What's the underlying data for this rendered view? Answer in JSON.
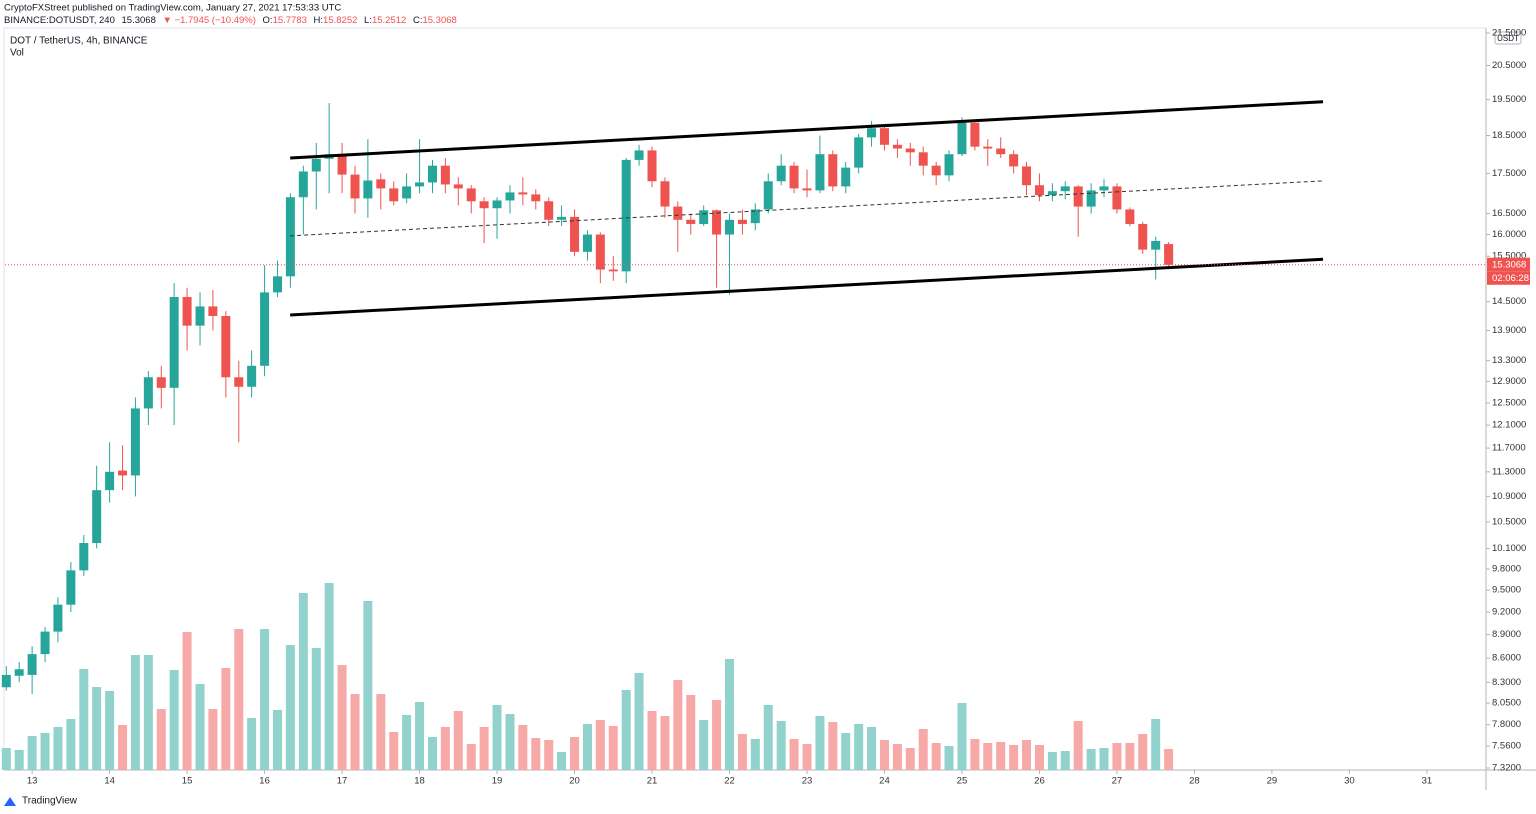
{
  "header": {
    "publisher": "CryptoFXStreet published on TradingView.com, January 27, 2021 17:53:33 UTC",
    "symbol": "BINANCE:DOTUSDT, 240",
    "price": "15.3068",
    "change": "▼ −1.7945 (−10.49%)",
    "ohlc": [
      {
        "label": "O:",
        "value": "15.7783"
      },
      {
        "label": "H:",
        "value": "15.8252"
      },
      {
        "label": "L:",
        "value": "15.2512"
      },
      {
        "label": "C:",
        "value": "15.3068"
      }
    ]
  },
  "brand": "TradingView",
  "chart_data": {
    "type": "candlestick",
    "title": "DOT / TetherUS, 4h, BINANCE",
    "volume_label": "Vol",
    "currency": "USDT",
    "log_scale": true,
    "up_color": "#26a69a",
    "down_color": "#ef5350",
    "up_volume_color": "#92d2cc",
    "down_volume_color": "#f7a9a7",
    "xlim": [
      12.65,
      31.75
    ],
    "xticks": [
      13,
      14,
      15,
      16,
      17,
      18,
      19,
      20,
      21,
      22,
      23,
      24,
      25,
      26,
      27,
      28,
      29,
      30,
      31
    ],
    "ylim": [
      7.32,
      21.5
    ],
    "yticks": [
      {
        "value": 21.5,
        "label": "21.5000"
      },
      {
        "value": 20.5,
        "label": "20.5000"
      },
      {
        "value": 19.5,
        "label": "19.5000"
      },
      {
        "value": 18.5,
        "label": "18.5000"
      },
      {
        "value": 17.5,
        "label": "17.5000"
      },
      {
        "value": 16.5,
        "label": "16.5000"
      },
      {
        "value": 16,
        "label": "16.0000"
      },
      {
        "value": 15.5,
        "label": "15.5000"
      },
      {
        "value": 14.5,
        "label": "14.5000"
      },
      {
        "value": 13.9,
        "label": "13.9000"
      },
      {
        "value": 13.3,
        "label": "13.3000"
      },
      {
        "value": 12.9,
        "label": "12.9000"
      },
      {
        "value": 12.5,
        "label": "12.5000"
      },
      {
        "value": 12.1,
        "label": "12.1000"
      },
      {
        "value": 11.7,
        "label": "11.7000"
      },
      {
        "value": 11.3,
        "label": "11.3000"
      },
      {
        "value": 10.9,
        "label": "10.9000"
      },
      {
        "value": 10.5,
        "label": "10.5000"
      },
      {
        "value": 10.1,
        "label": "10.1000"
      },
      {
        "value": 9.8,
        "label": "9.8000"
      },
      {
        "value": 9.5,
        "label": "9.5000"
      },
      {
        "value": 9.2,
        "label": "9.2000"
      },
      {
        "value": 8.9,
        "label": "8.9000"
      },
      {
        "value": 8.6,
        "label": "8.6000"
      },
      {
        "value": 8.3,
        "label": "8.3000"
      },
      {
        "value": 8.05,
        "label": "8.0500"
      },
      {
        "value": 7.8,
        "label": "7.8000"
      },
      {
        "value": 7.56,
        "label": "7.5600"
      },
      {
        "value": 7.32,
        "label": "7.3200"
      }
    ],
    "x": [
      12.667,
      12.833,
      13,
      13.167,
      13.333,
      13.5,
      13.667,
      13.833,
      14,
      14.167,
      14.333,
      14.5,
      14.667,
      14.833,
      15,
      15.167,
      15.333,
      15.5,
      15.667,
      15.833,
      16,
      16.167,
      16.333,
      16.5,
      16.667,
      16.833,
      17,
      17.167,
      17.333,
      17.5,
      17.667,
      17.833,
      18,
      18.167,
      18.333,
      18.5,
      18.667,
      18.833,
      19,
      19.167,
      19.333,
      19.5,
      19.667,
      19.833,
      20,
      20.167,
      20.333,
      20.5,
      20.667,
      20.833,
      21,
      21.167,
      21.333,
      21.5,
      21.667,
      21.833,
      22,
      22.167,
      22.333,
      22.5,
      22.667,
      22.833,
      23,
      23.167,
      23.333,
      23.5,
      23.667,
      23.833,
      24,
      24.167,
      24.333,
      24.5,
      24.667,
      24.833,
      25,
      25.167,
      25.333,
      25.5,
      25.667,
      25.833,
      26,
      26.167,
      26.333,
      26.5,
      26.667,
      26.833,
      27,
      27.167,
      27.333,
      27.5,
      27.667
    ],
    "open": [
      8.24,
      8.38,
      8.39,
      8.65,
      8.94,
      9.3,
      9.78,
      10.18,
      11.0,
      11.32,
      11.24,
      12.4,
      12.98,
      12.78,
      14.6,
      14.0,
      14.4,
      14.2,
      12.98,
      12.8,
      13.2,
      14.7,
      15.05,
      16.9,
      17.55,
      17.88,
      18.0,
      17.47,
      16.87,
      17.35,
      17.12,
      16.87,
      17.17,
      17.27,
      17.7,
      17.22,
      17.12,
      16.8,
      16.63,
      16.82,
      17.02,
      16.97,
      16.8,
      16.35,
      16.42,
      15.6,
      16.0,
      15.2,
      15.16,
      17.85,
      18.1,
      17.3,
      16.67,
      16.35,
      16.25,
      16.58,
      16.0,
      16.35,
      16.27,
      16.6,
      17.3,
      17.7,
      17.12,
      17.07,
      18.0,
      17.17,
      17.65,
      18.45,
      18.7,
      18.25,
      18.15,
      18.05,
      17.7,
      17.45,
      18.0,
      18.85,
      18.2,
      18.15,
      18.0,
      17.68,
      17.2,
      16.95,
      17.05,
      17.17,
      16.67,
      17.07,
      17.17,
      16.6,
      16.25,
      15.65,
      15.7783
    ],
    "high": [
      8.5,
      8.55,
      8.75,
      9.0,
      9.4,
      9.9,
      10.3,
      11.4,
      11.8,
      11.75,
      12.6,
      13.1,
      13.2,
      14.9,
      14.8,
      14.7,
      14.75,
      14.3,
      13.3,
      13.5,
      15.3,
      15.4,
      17.0,
      17.7,
      18.3,
      19.4,
      18.3,
      17.7,
      18.4,
      17.5,
      17.3,
      17.5,
      18.4,
      17.85,
      17.9,
      17.4,
      17.2,
      16.9,
      16.9,
      17.2,
      17.4,
      17.1,
      16.9,
      16.7,
      16.6,
      16.1,
      16.05,
      15.5,
      17.9,
      18.25,
      18.2,
      17.4,
      16.8,
      16.5,
      16.7,
      16.6,
      16.5,
      16.6,
      16.75,
      17.5,
      18.0,
      17.8,
      17.6,
      18.5,
      18.1,
      17.8,
      18.55,
      18.9,
      18.8,
      18.4,
      18.3,
      18.2,
      17.8,
      18.1,
      19.0,
      18.95,
      18.4,
      18.45,
      18.1,
      17.8,
      17.5,
      17.25,
      17.3,
      17.2,
      17.25,
      17.35,
      17.25,
      16.65,
      16.3,
      15.95,
      15.8252
    ],
    "low": [
      8.2,
      8.3,
      8.16,
      8.55,
      8.8,
      9.2,
      9.7,
      10.1,
      10.8,
      11.0,
      10.9,
      12.1,
      12.4,
      12.1,
      13.5,
      13.6,
      13.9,
      12.6,
      11.8,
      12.6,
      13.0,
      14.6,
      14.8,
      16.0,
      16.6,
      17.0,
      17.0,
      16.5,
      16.4,
      16.6,
      16.7,
      16.75,
      17.0,
      17.0,
      17.0,
      16.7,
      16.5,
      15.8,
      15.9,
      16.5,
      16.7,
      16.6,
      16.2,
      16.2,
      15.5,
      15.4,
      14.9,
      14.95,
      14.9,
      17.7,
      17.15,
      16.4,
      15.6,
      16.0,
      16.2,
      14.8,
      14.65,
      16.0,
      16.1,
      16.5,
      17.2,
      17.0,
      16.9,
      17.0,
      17.05,
      17.0,
      17.5,
      18.2,
      18.1,
      17.9,
      17.7,
      17.45,
      17.2,
      17.3,
      17.95,
      18.1,
      17.7,
      17.9,
      17.5,
      16.95,
      16.8,
      16.8,
      16.85,
      15.95,
      16.5,
      16.9,
      16.5,
      16.2,
      15.55,
      14.98,
      15.2512
    ],
    "close": [
      8.39,
      8.46,
      8.65,
      8.94,
      9.3,
      9.78,
      10.18,
      11.0,
      11.3,
      11.24,
      12.4,
      12.98,
      12.78,
      14.6,
      14.0,
      14.4,
      14.2,
      12.98,
      12.8,
      13.2,
      14.7,
      15.05,
      16.9,
      17.55,
      17.88,
      18.0,
      17.47,
      16.87,
      17.32,
      17.12,
      16.8,
      17.17,
      17.27,
      17.7,
      17.22,
      17.12,
      16.8,
      16.63,
      16.82,
      17.02,
      16.97,
      16.8,
      16.35,
      16.42,
      15.6,
      16.0,
      15.2,
      15.16,
      17.85,
      18.1,
      17.3,
      16.67,
      16.35,
      16.25,
      16.58,
      16.0,
      16.35,
      16.25,
      16.6,
      17.3,
      17.7,
      17.12,
      17.07,
      18.0,
      17.17,
      17.65,
      18.45,
      18.7,
      18.25,
      18.15,
      18.05,
      17.7,
      17.45,
      18.0,
      18.85,
      18.2,
      18.15,
      18.0,
      17.68,
      17.2,
      16.95,
      17.05,
      17.17,
      16.67,
      17.07,
      17.17,
      16.6,
      16.25,
      15.65,
      15.85,
      15.3068
    ],
    "volume": [
      22,
      20,
      34,
      37,
      43,
      51,
      101,
      83,
      79,
      45,
      115,
      115,
      61,
      100,
      138,
      86,
      61,
      102,
      141,
      52,
      141,
      60,
      125,
      177,
      122,
      187,
      105,
      76,
      169,
      76,
      38,
      55,
      68,
      33,
      43,
      59,
      26,
      43,
      65,
      56,
      45,
      32,
      30,
      18,
      33,
      46,
      50,
      44,
      80,
      97,
      59,
      54,
      90,
      75,
      50,
      70,
      111,
      36,
      31,
      65,
      49,
      31,
      26,
      54,
      48,
      37,
      46,
      43,
      30,
      26,
      22,
      41,
      27,
      24,
      67,
      31,
      27,
      28,
      25,
      30,
      25,
      18,
      19,
      49,
      21,
      22,
      27,
      27,
      36,
      51,
      21
    ],
    "trendlines": [
      {
        "x": [
          16.33,
          29.66
        ],
        "y": [
          17.9,
          19.44
        ],
        "color": "#000000",
        "dashed": false
      },
      {
        "x": [
          16.33,
          29.66
        ],
        "y": [
          15.97,
          17.31
        ],
        "color": "#333333",
        "dashed": true
      },
      {
        "x": [
          16.33,
          29.66
        ],
        "y": [
          14.22,
          15.43
        ],
        "color": "#000000",
        "dashed": false
      }
    ],
    "last_price": 15.3068,
    "countdown": "02:06:28"
  }
}
